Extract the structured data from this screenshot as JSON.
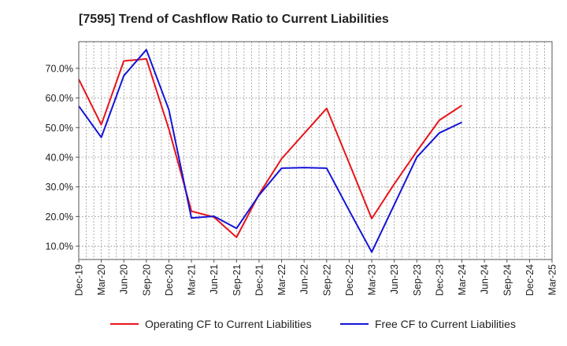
{
  "chart_data": {
    "type": "line",
    "title": "[7595]  Trend of Cashflow Ratio to Current Liabilities",
    "xlabel": "",
    "ylabel": "",
    "categories": [
      "Dec-19",
      "Mar-20",
      "Jun-20",
      "Sep-20",
      "Dec-20",
      "Mar-21",
      "Jun-21",
      "Sep-21",
      "Dec-21",
      "Mar-22",
      "Jun-22",
      "Sep-22",
      "Dec-22",
      "Mar-23",
      "Jun-23",
      "Sep-23",
      "Dec-23",
      "Mar-24",
      "Jun-24",
      "Sep-24",
      "Dec-24",
      "Mar-25"
    ],
    "ylim": [
      5.5,
      79
    ],
    "yticks": [
      10,
      20,
      30,
      40,
      50,
      60,
      70
    ],
    "ytick_labels": [
      "10.0%",
      "20.0%",
      "30.0%",
      "40.0%",
      "50.0%",
      "60.0%",
      "70.0%"
    ],
    "grid": true,
    "legend_position": "bottom",
    "series": [
      {
        "name": "Operating CF to Current Liabilities",
        "color": "#e8141b",
        "values": [
          66.3,
          51.0,
          72.5,
          73.2,
          49.5,
          21.8,
          19.8,
          13.0,
          27.5,
          39.5,
          48.0,
          56.5,
          38.0,
          19.3,
          31.0,
          42.0,
          52.5,
          57.5,
          null,
          null,
          null,
          null
        ]
      },
      {
        "name": "Free CF to Current Liabilities",
        "color": "#1414d8",
        "values": [
          57.3,
          46.7,
          67.5,
          76.3,
          56.0,
          19.5,
          20.1,
          16.0,
          27.2,
          36.3,
          36.5,
          36.3,
          22.0,
          8.0,
          24.0,
          40.0,
          48.2,
          51.8,
          null,
          null,
          null,
          null
        ]
      }
    ]
  }
}
